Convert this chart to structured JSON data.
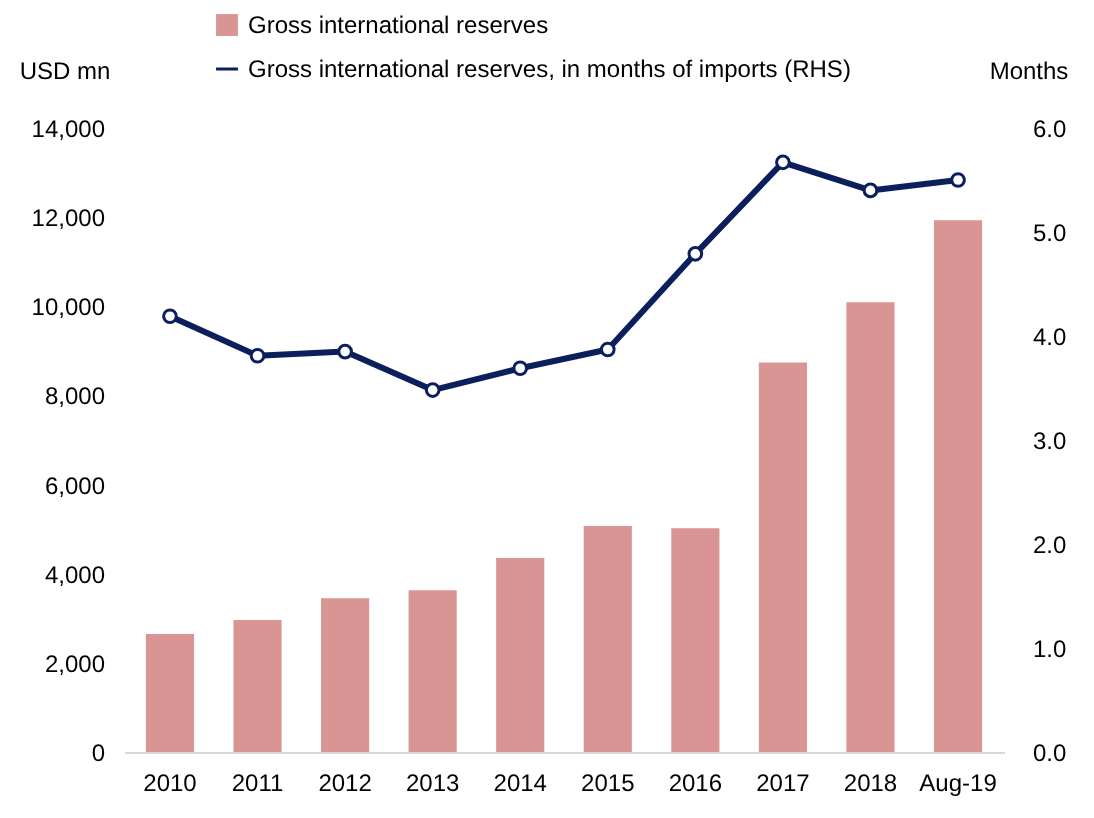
{
  "chart_data": {
    "type": "bar",
    "ylabel": "USD mn",
    "y2label": "Months",
    "categories": [
      "2010",
      "2011",
      "2012",
      "2013",
      "2014",
      "2015",
      "2016",
      "2017",
      "2018",
      "Aug-19"
    ],
    "series": [
      {
        "name": "Gross international reserves",
        "color": "#d99593",
        "values": [
          2650,
          2960,
          3450,
          3630,
          4350,
          5070,
          5020,
          8740,
          10090,
          11930
        ]
      },
      {
        "name": "Gross international reserves, in months of imports (RHS)",
        "type": "line",
        "axis": "y2",
        "color": "#0a1f5c",
        "marker": "circle",
        "values": [
          4.19,
          3.81,
          3.85,
          3.48,
          3.69,
          3.87,
          4.79,
          5.67,
          5.4,
          5.5
        ]
      }
    ],
    "ylim": [
      0,
      14000
    ],
    "yticks": [
      0,
      {
        "value": 2000,
        "label": "2,000"
      },
      {
        "value": 4000,
        "label": "4,000"
      },
      {
        "value": 6000,
        "label": "6,000"
      },
      {
        "value": 8000,
        "label": "8,000"
      },
      {
        "value": 10000,
        "label": "10,000"
      },
      {
        "value": 12000,
        "label": "12,000"
      },
      {
        "value": 14000,
        "label": "14,000"
      }
    ],
    "y2lim": [
      0,
      6
    ],
    "y2ticks": [
      {
        "value": 0,
        "label": "0.0"
      },
      {
        "value": 1,
        "label": "1.0"
      },
      {
        "value": 2,
        "label": "2.0"
      },
      {
        "value": 3,
        "label": "3.0"
      },
      {
        "value": 4,
        "label": "4.0"
      },
      {
        "value": 5,
        "label": "5.0"
      },
      {
        "value": 6,
        "label": "6.0"
      }
    ],
    "legend": "top",
    "grid": false
  }
}
